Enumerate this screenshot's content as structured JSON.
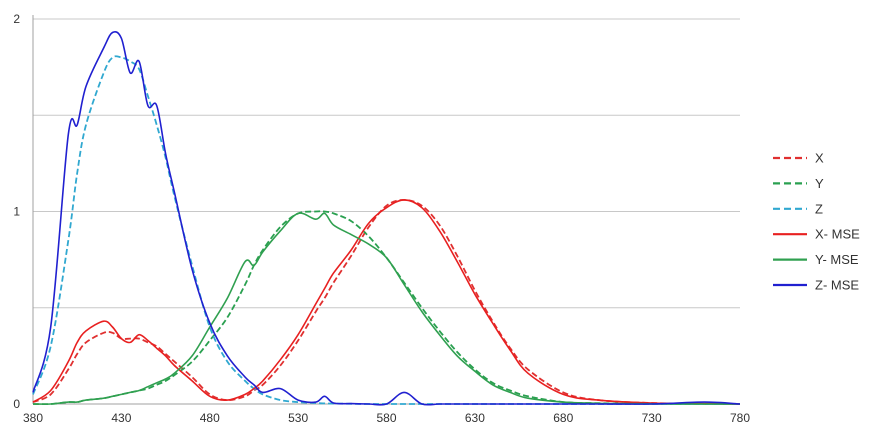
{
  "chart_data": {
    "type": "line",
    "title": "",
    "xlabel": "",
    "ylabel": "",
    "xlim": [
      380,
      780
    ],
    "ylim": [
      0,
      2
    ],
    "x_ticks": [
      380,
      430,
      480,
      530,
      580,
      630,
      680,
      730,
      780
    ],
    "x_tick_labels": [
      "380",
      "430",
      "480",
      "530",
      "580",
      "630",
      "680",
      "730",
      "780"
    ],
    "y_ticks": [
      0,
      0.5,
      1,
      1.5,
      2
    ],
    "y_tick_labels": [
      "0",
      "",
      "1",
      "",
      "2"
    ],
    "grid": "horizontal",
    "legend_position": "right",
    "x": [
      380,
      390,
      400,
      405,
      410,
      420,
      425,
      430,
      435,
      440,
      445,
      450,
      455,
      460,
      470,
      480,
      490,
      500,
      505,
      510,
      520,
      530,
      540,
      545,
      550,
      560,
      570,
      580,
      590,
      600,
      610,
      620,
      630,
      640,
      650,
      660,
      680,
      700,
      730,
      760,
      780
    ],
    "series": [
      {
        "name": "X",
        "style": "dashed",
        "color": "#e03030",
        "values": [
          0.01,
          0.05,
          0.18,
          0.26,
          0.32,
          0.37,
          0.37,
          0.34,
          0.34,
          0.34,
          0.32,
          0.3,
          0.26,
          0.22,
          0.14,
          0.05,
          0.02,
          0.04,
          0.07,
          0.1,
          0.2,
          0.33,
          0.48,
          0.55,
          0.63,
          0.77,
          0.92,
          1.03,
          1.06,
          1.03,
          0.93,
          0.77,
          0.59,
          0.43,
          0.29,
          0.18,
          0.06,
          0.02,
          0.005,
          0.001,
          0.0
        ]
      },
      {
        "name": "Y",
        "style": "dashed",
        "color": "#2aa050",
        "values": [
          0.0,
          0.0,
          0.01,
          0.01,
          0.02,
          0.03,
          0.04,
          0.05,
          0.06,
          0.07,
          0.08,
          0.1,
          0.12,
          0.15,
          0.22,
          0.33,
          0.45,
          0.62,
          0.72,
          0.8,
          0.92,
          0.99,
          1.0,
          1.0,
          0.99,
          0.95,
          0.87,
          0.76,
          0.63,
          0.5,
          0.38,
          0.27,
          0.18,
          0.11,
          0.07,
          0.04,
          0.01,
          0.004,
          0.001,
          0.0,
          0.0
        ]
      },
      {
        "name": "Z",
        "style": "dashed",
        "color": "#30a8d0",
        "values": [
          0.05,
          0.3,
          0.85,
          1.2,
          1.45,
          1.72,
          1.8,
          1.8,
          1.78,
          1.74,
          1.6,
          1.45,
          1.28,
          1.08,
          0.72,
          0.4,
          0.22,
          0.12,
          0.08,
          0.05,
          0.02,
          0.01,
          0.005,
          0.003,
          0.002,
          0.001,
          0.0,
          0.0,
          0.0,
          0.0,
          0.0,
          0.0,
          0.0,
          0.0,
          0.0,
          0.0,
          0.0,
          0.0,
          0.0,
          0.0,
          0.0
        ]
      },
      {
        "name": "X- MSE",
        "style": "solid",
        "color": "#e82020",
        "values": [
          0.01,
          0.07,
          0.22,
          0.32,
          0.38,
          0.43,
          0.4,
          0.34,
          0.32,
          0.36,
          0.33,
          0.29,
          0.25,
          0.2,
          0.12,
          0.04,
          0.02,
          0.05,
          0.08,
          0.12,
          0.23,
          0.36,
          0.52,
          0.6,
          0.68,
          0.8,
          0.94,
          1.02,
          1.06,
          1.02,
          0.9,
          0.74,
          0.57,
          0.42,
          0.28,
          0.16,
          0.05,
          0.02,
          0.005,
          0.002,
          0.0
        ]
      },
      {
        "name": "Y- MSE",
        "style": "solid",
        "color": "#30a050",
        "values": [
          0.0,
          0.0,
          0.01,
          0.01,
          0.02,
          0.03,
          0.04,
          0.05,
          0.06,
          0.07,
          0.09,
          0.11,
          0.13,
          0.16,
          0.25,
          0.4,
          0.55,
          0.74,
          0.72,
          0.79,
          0.9,
          0.99,
          0.96,
          0.99,
          0.93,
          0.88,
          0.83,
          0.76,
          0.62,
          0.48,
          0.36,
          0.25,
          0.17,
          0.1,
          0.06,
          0.03,
          0.01,
          0.003,
          0.001,
          0.0,
          0.0
        ]
      },
      {
        "name": "Z- MSE",
        "style": "solid",
        "color": "#2020d0",
        "values": [
          0.06,
          0.4,
          1.4,
          1.45,
          1.65,
          1.85,
          1.93,
          1.9,
          1.72,
          1.78,
          1.55,
          1.55,
          1.3,
          1.1,
          0.7,
          0.42,
          0.25,
          0.14,
          0.1,
          0.06,
          0.08,
          0.02,
          0.01,
          0.04,
          0.005,
          0.002,
          0.0,
          0.0,
          0.06,
          0.0,
          0.0,
          0.0,
          0.0,
          0.0,
          0.0,
          0.0,
          0.0,
          0.0,
          0.0,
          0.01,
          0.0
        ]
      }
    ]
  }
}
